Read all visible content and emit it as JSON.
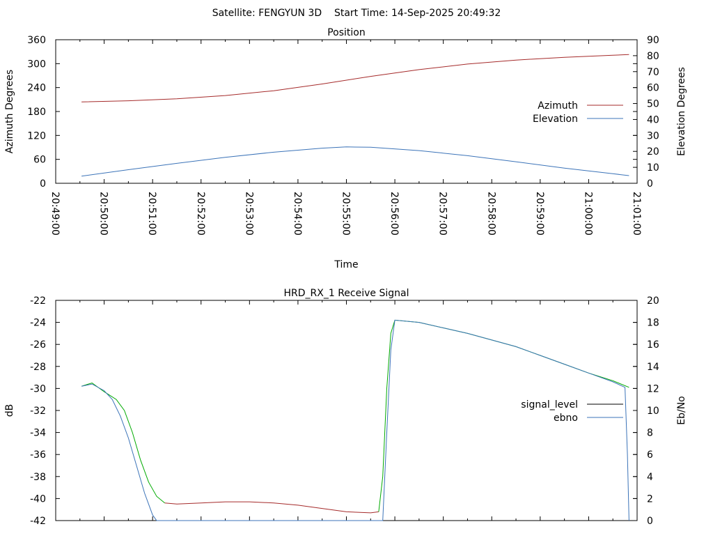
{
  "header": {
    "title": "Satellite: FENGYUN 3D    Start Time: 14-Sep-2025 20:49:32"
  },
  "chart_data": [
    {
      "type": "line",
      "title": "Position",
      "xlabel": "Time",
      "ylabel": "Azimuth Degrees",
      "y2label": "Elevation Degrees",
      "xlim": [
        "20:49:00",
        "21:01:00"
      ],
      "xticks": [
        "20:49:00",
        "20:50:00",
        "20:51:00",
        "20:52:00",
        "20:53:00",
        "20:54:00",
        "20:55:00",
        "20:56:00",
        "20:57:00",
        "20:58:00",
        "20:59:00",
        "21:00:00",
        "21:01:00"
      ],
      "ylim": [
        0,
        360
      ],
      "yticks": [
        0,
        60,
        120,
        180,
        240,
        300,
        360
      ],
      "y2lim": [
        0,
        90
      ],
      "y2ticks": [
        0,
        10,
        20,
        30,
        40,
        50,
        60,
        70,
        80,
        90
      ],
      "legend_position": "right",
      "series": [
        {
          "name": "Azimuth",
          "axis": "left",
          "color": "#a52a2a",
          "points": [
            [
              "20:49:32",
              204
            ],
            [
              "20:50:30",
              207
            ],
            [
              "20:51:30",
              212
            ],
            [
              "20:52:30",
              220
            ],
            [
              "20:53:30",
              232
            ],
            [
              "20:54:30",
              249
            ],
            [
              "20:55:30",
              268
            ],
            [
              "20:56:30",
              285
            ],
            [
              "20:57:30",
              299
            ],
            [
              "20:58:30",
              309
            ],
            [
              "20:59:30",
              316
            ],
            [
              "21:00:30",
              321
            ],
            [
              "21:00:50",
              323
            ]
          ]
        },
        {
          "name": "Elevation",
          "axis": "right",
          "color": "#3b73b8",
          "points": [
            [
              "20:49:32",
              4.5
            ],
            [
              "20:50:30",
              8.5
            ],
            [
              "20:51:30",
              12.5
            ],
            [
              "20:52:30",
              16.3
            ],
            [
              "20:53:30",
              19.5
            ],
            [
              "20:54:30",
              22
            ],
            [
              "20:55:00",
              22.8
            ],
            [
              "20:55:30",
              22.6
            ],
            [
              "20:56:30",
              20.5
            ],
            [
              "20:57:30",
              17.3
            ],
            [
              "20:58:30",
              13.5
            ],
            [
              "20:59:30",
              9.5
            ],
            [
              "21:00:30",
              6
            ],
            [
              "21:00:50",
              4.8
            ]
          ]
        }
      ]
    },
    {
      "type": "line",
      "title": "HRD_RX_1 Receive Signal",
      "xlabel": "",
      "ylabel": "dB",
      "y2label": "Eb/No",
      "xlim": [
        "20:49:00",
        "21:01:00"
      ],
      "ylim": [
        -42,
        -22
      ],
      "yticks": [
        -42,
        -40,
        -38,
        -36,
        -34,
        -32,
        -30,
        -28,
        -26,
        -24,
        -22
      ],
      "y2lim": [
        0,
        20
      ],
      "y2ticks": [
        0,
        2,
        4,
        6,
        8,
        10,
        12,
        14,
        16,
        18,
        20
      ],
      "legend_position": "right",
      "series": [
        {
          "name": "signal_level",
          "axis": "left",
          "color": "#000000",
          "segments": [
            {
              "color": "#00aa00",
              "points": [
                [
                  "20:49:32",
                  -29.8
                ],
                [
                  "20:49:45",
                  -29.5
                ],
                [
                  "20:50:00",
                  -30.3
                ],
                [
                  "20:50:15",
                  -31.0
                ],
                [
                  "20:50:25",
                  -32.0
                ],
                [
                  "20:50:35",
                  -34.0
                ],
                [
                  "20:50:45",
                  -36.5
                ],
                [
                  "20:50:55",
                  -38.5
                ],
                [
                  "20:51:05",
                  -39.8
                ],
                [
                  "20:51:15",
                  -40.4
                ]
              ]
            },
            {
              "color": "#a52a2a",
              "points": [
                [
                  "20:51:15",
                  -40.4
                ],
                [
                  "20:51:30",
                  -40.5
                ],
                [
                  "20:52:00",
                  -40.4
                ],
                [
                  "20:52:30",
                  -40.3
                ],
                [
                  "20:53:00",
                  -40.3
                ],
                [
                  "20:53:30",
                  -40.4
                ],
                [
                  "20:54:00",
                  -40.6
                ],
                [
                  "20:54:30",
                  -40.9
                ],
                [
                  "20:55:00",
                  -41.2
                ],
                [
                  "20:55:30",
                  -41.3
                ],
                [
                  "20:55:40",
                  -41.2
                ]
              ]
            },
            {
              "color": "#00aa00",
              "points": [
                [
                  "20:55:40",
                  -41.2
                ],
                [
                  "20:55:45",
                  -38.0
                ],
                [
                  "20:55:50",
                  -30.0
                ],
                [
                  "20:55:55",
                  -25.0
                ],
                [
                  "20:56:00",
                  -23.8
                ],
                [
                  "20:56:30",
                  -24.0
                ],
                [
                  "20:57:00",
                  -24.5
                ],
                [
                  "20:57:30",
                  -25.0
                ],
                [
                  "20:58:00",
                  -25.6
                ],
                [
                  "20:58:30",
                  -26.2
                ],
                [
                  "20:59:00",
                  -27.0
                ],
                [
                  "20:59:30",
                  -27.8
                ],
                [
                  "21:00:00",
                  -28.6
                ],
                [
                  "21:00:30",
                  -29.3
                ],
                [
                  "21:00:50",
                  -29.9
                ]
              ]
            }
          ]
        },
        {
          "name": "ebno",
          "axis": "right",
          "color": "#3b73b8",
          "points": [
            [
              "20:49:32",
              12.2
            ],
            [
              "20:49:45",
              12.4
            ],
            [
              "20:50:00",
              11.8
            ],
            [
              "20:50:10",
              11.0
            ],
            [
              "20:50:20",
              9.5
            ],
            [
              "20:50:30",
              7.5
            ],
            [
              "20:50:40",
              5.0
            ],
            [
              "20:50:50",
              2.5
            ],
            [
              "20:51:00",
              0.5
            ],
            [
              "20:51:05",
              0
            ],
            [
              "20:55:45",
              0
            ],
            [
              "20:55:50",
              8
            ],
            [
              "20:55:55",
              15.5
            ],
            [
              "20:56:00",
              18.2
            ],
            [
              "20:56:30",
              18.0
            ],
            [
              "20:57:00",
              17.5
            ],
            [
              "20:57:30",
              17.0
            ],
            [
              "20:58:00",
              16.4
            ],
            [
              "20:58:30",
              15.8
            ],
            [
              "20:59:00",
              15.0
            ],
            [
              "20:59:30",
              14.2
            ],
            [
              "21:00:00",
              13.4
            ],
            [
              "21:00:30",
              12.6
            ],
            [
              "21:00:45",
              12.1
            ],
            [
              "21:00:48",
              6.0
            ],
            [
              "21:00:50",
              0
            ]
          ]
        }
      ]
    }
  ]
}
